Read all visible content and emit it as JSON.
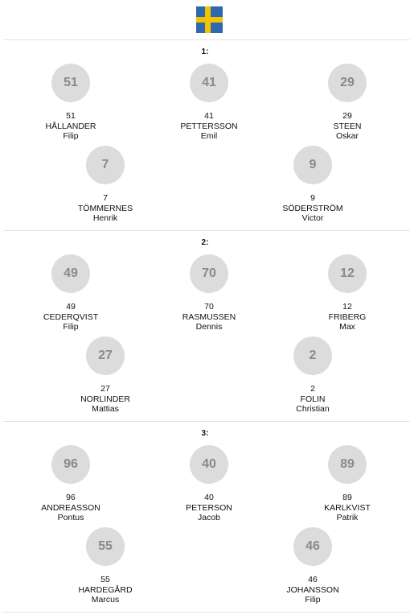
{
  "header": {
    "flag": "sweden-flag",
    "flag_colors": {
      "blue": "#2f67b0",
      "yellow": "#f3c300"
    }
  },
  "lines": [
    {
      "title": "1:",
      "players": [
        {
          "number": "51",
          "last": "HÅLLANDER",
          "first": "Filip"
        },
        {
          "number": "41",
          "last": "PETTERSSON",
          "first": "Emil"
        },
        {
          "number": "29",
          "last": "STEEN",
          "first": "Oskar"
        },
        {
          "number": "7",
          "last": "TÖMMERNES",
          "first": "Henrik"
        },
        {
          "number": "9",
          "last": "SÖDERSTRÖM",
          "first": "Victor"
        }
      ]
    },
    {
      "title": "2:",
      "players": [
        {
          "number": "49",
          "last": "CEDERQVIST",
          "first": "Filip"
        },
        {
          "number": "70",
          "last": "RASMUSSEN",
          "first": "Dennis"
        },
        {
          "number": "12",
          "last": "FRIBERG",
          "first": "Max"
        },
        {
          "number": "27",
          "last": "NORLINDER",
          "first": "Mattias"
        },
        {
          "number": "2",
          "last": "FOLIN",
          "first": "Christian"
        }
      ]
    },
    {
      "title": "3:",
      "players": [
        {
          "number": "96",
          "last": "ANDREASSON",
          "first": "Pontus"
        },
        {
          "number": "40",
          "last": "PETERSON",
          "first": "Jacob"
        },
        {
          "number": "89",
          "last": "KARLKVIST",
          "first": "Patrik"
        },
        {
          "number": "55",
          "last": "HARDEGÅRD",
          "first": "Marcus"
        },
        {
          "number": "46",
          "last": "JOHANSSON",
          "first": "Filip"
        }
      ]
    }
  ]
}
